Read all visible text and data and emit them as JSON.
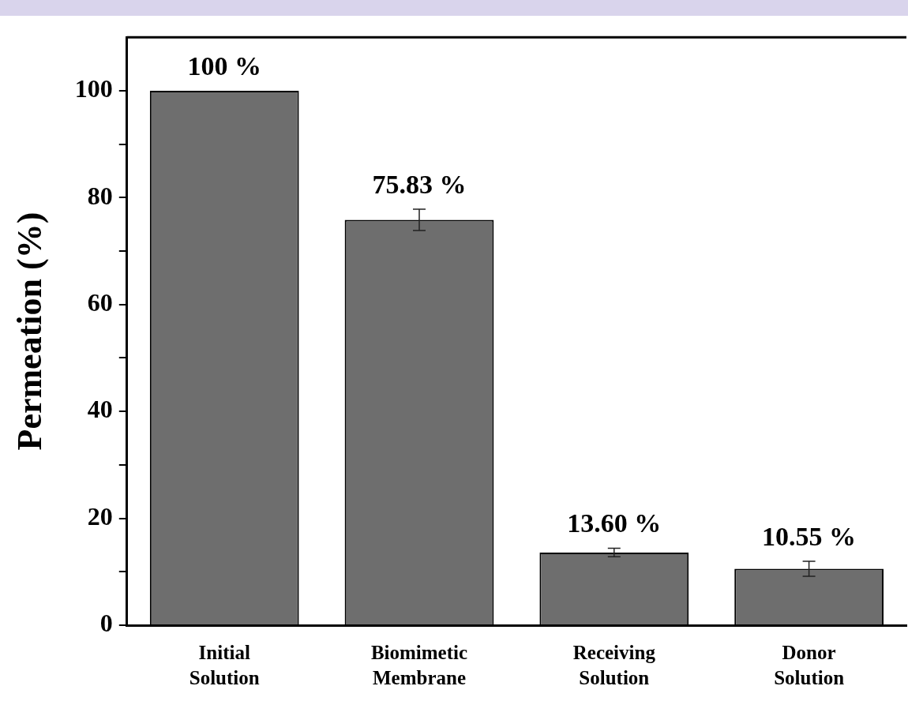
{
  "chart_data": {
    "type": "bar",
    "ylabel": "Permeation (%)",
    "categories": [
      "Initial Solution",
      "Biomimetic Membrane",
      "Receiving Solution",
      "Donor Solution"
    ],
    "values": [
      100,
      75.83,
      13.6,
      10.55
    ],
    "errors": [
      null,
      2,
      0.8,
      1.4
    ],
    "value_labels": [
      "100 %",
      "75.83 %",
      "13.60 %",
      "10.55 %"
    ],
    "color": "#6e6e6e",
    "ylim": [
      0,
      110
    ],
    "yticks": [
      0,
      {
        "value": 10,
        "label": null
      },
      20,
      {
        "value": 30,
        "label": null
      },
      40,
      {
        "value": 50,
        "label": null
      },
      60,
      {
        "value": 70,
        "label": null
      },
      80,
      {
        "value": 90,
        "label": null
      },
      100
    ],
    "grid": false
  }
}
